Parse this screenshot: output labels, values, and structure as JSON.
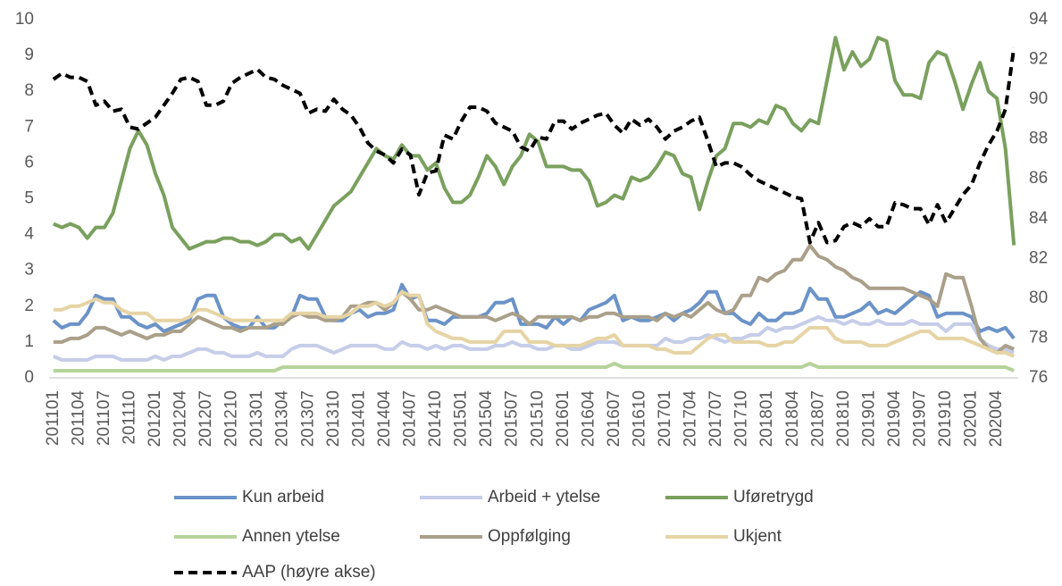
{
  "chart_data": {
    "type": "line",
    "categories": [
      "201101",
      null,
      null,
      "201104",
      null,
      null,
      "201107",
      null,
      null,
      "201110",
      null,
      null,
      "201201",
      null,
      null,
      "201204",
      null,
      null,
      "201207",
      null,
      null,
      "201210",
      null,
      null,
      "201301",
      null,
      null,
      "201304",
      null,
      null,
      "201307",
      null,
      null,
      "201310",
      null,
      null,
      "201401",
      null,
      null,
      "201404",
      null,
      null,
      "201407",
      null,
      null,
      "201410",
      null,
      null,
      "201501",
      null,
      null,
      "201504",
      null,
      null,
      "201507",
      null,
      null,
      "201510",
      null,
      null,
      "201601",
      null,
      null,
      "201604",
      null,
      null,
      "201607",
      null,
      null,
      "201610",
      null,
      null,
      "201701",
      null,
      null,
      "201704",
      null,
      null,
      "201707",
      null,
      null,
      "201710",
      null,
      null,
      "201801",
      null,
      null,
      "201804",
      null,
      null,
      "201807",
      null,
      null,
      "201810",
      null,
      null,
      "201901",
      null,
      null,
      "201904",
      null,
      null,
      "201907",
      null,
      null,
      "201910",
      null,
      null,
      "202001",
      null,
      null,
      "202004",
      null,
      null
    ],
    "series": [
      {
        "name": "Kun arbeid",
        "color": "#6b93c8",
        "values": [
          1.6,
          1.4,
          1.5,
          1.5,
          1.8,
          2.3,
          2.2,
          2.2,
          1.7,
          1.7,
          1.5,
          1.4,
          1.5,
          1.3,
          1.4,
          1.5,
          1.6,
          2.2,
          2.3,
          2.3,
          1.7,
          1.5,
          1.4,
          1.4,
          1.7,
          1.4,
          1.4,
          1.6,
          1.7,
          2.3,
          2.2,
          2.2,
          1.7,
          1.6,
          1.6,
          1.8,
          1.9,
          1.7,
          1.8,
          1.8,
          1.9,
          2.6,
          2.2,
          2.3,
          1.6,
          1.6,
          1.5,
          1.7,
          1.7,
          1.7,
          1.7,
          1.8,
          2.1,
          2.1,
          2.2,
          1.5,
          1.5,
          1.5,
          1.4,
          1.7,
          1.5,
          1.7,
          1.6,
          1.9,
          2.0,
          2.1,
          2.3,
          1.6,
          1.7,
          1.6,
          1.6,
          1.7,
          1.8,
          1.6,
          1.8,
          1.9,
          2.1,
          2.4,
          2.4,
          1.8,
          1.8,
          1.6,
          1.5,
          1.8,
          1.6,
          1.6,
          1.8,
          1.8,
          1.9,
          2.5,
          2.2,
          2.2,
          1.7,
          1.7,
          1.8,
          1.9,
          2.1,
          1.8,
          1.9,
          1.8,
          2.0,
          2.2,
          2.4,
          2.3,
          1.7,
          1.8,
          1.8,
          1.8,
          1.7,
          1.3,
          1.4,
          1.3,
          1.4,
          1.1
        ]
      },
      {
        "name": "Arbeid + ytelse",
        "color": "#c5cde8",
        "values": [
          0.6,
          0.5,
          0.5,
          0.5,
          0.5,
          0.6,
          0.6,
          0.6,
          0.5,
          0.5,
          0.5,
          0.5,
          0.6,
          0.5,
          0.6,
          0.6,
          0.7,
          0.8,
          0.8,
          0.7,
          0.7,
          0.6,
          0.6,
          0.6,
          0.7,
          0.6,
          0.6,
          0.6,
          0.8,
          0.9,
          0.9,
          0.9,
          0.8,
          0.7,
          0.8,
          0.9,
          0.9,
          0.9,
          0.9,
          0.8,
          0.8,
          1.0,
          0.9,
          0.9,
          0.8,
          0.9,
          0.8,
          0.9,
          0.9,
          0.8,
          0.8,
          0.8,
          0.9,
          0.9,
          1.0,
          0.9,
          0.9,
          0.8,
          0.8,
          0.9,
          0.9,
          0.8,
          0.8,
          0.9,
          1.0,
          1.0,
          1.0,
          0.9,
          0.9,
          0.9,
          0.9,
          0.9,
          1.1,
          1.0,
          1.0,
          1.1,
          1.1,
          1.2,
          1.1,
          1.0,
          1.1,
          1.1,
          1.2,
          1.2,
          1.4,
          1.3,
          1.4,
          1.4,
          1.5,
          1.6,
          1.7,
          1.6,
          1.6,
          1.5,
          1.6,
          1.5,
          1.5,
          1.6,
          1.5,
          1.5,
          1.5,
          1.6,
          1.5,
          1.5,
          1.5,
          1.3,
          1.5,
          1.5,
          1.5,
          1.1,
          0.9,
          0.8,
          0.8,
          0.7
        ]
      },
      {
        "name": "Uføretrygd",
        "color": "#7aa05e",
        "values": [
          4.3,
          4.2,
          4.3,
          4.2,
          3.9,
          4.2,
          4.2,
          4.6,
          5.5,
          6.4,
          6.9,
          6.5,
          5.7,
          5.1,
          4.2,
          3.9,
          3.6,
          3.7,
          3.8,
          3.8,
          3.9,
          3.9,
          3.8,
          3.8,
          3.7,
          3.8,
          4.0,
          4.0,
          3.8,
          3.9,
          3.6,
          4.0,
          4.4,
          4.8,
          5.0,
          5.2,
          5.6,
          6.0,
          6.4,
          6.2,
          6.1,
          6.5,
          6.2,
          6.2,
          5.8,
          6.0,
          5.3,
          4.9,
          4.9,
          5.1,
          5.6,
          6.2,
          5.9,
          5.4,
          5.9,
          6.2,
          6.8,
          6.6,
          5.9,
          5.9,
          5.9,
          5.8,
          5.8,
          5.5,
          4.8,
          4.9,
          5.1,
          5.0,
          5.6,
          5.5,
          5.6,
          5.9,
          6.3,
          6.2,
          5.7,
          5.6,
          4.7,
          5.5,
          6.2,
          6.4,
          7.1,
          7.1,
          7.0,
          7.2,
          7.1,
          7.6,
          7.5,
          7.1,
          6.9,
          7.2,
          7.1,
          8.3,
          9.5,
          8.6,
          9.1,
          8.7,
          8.9,
          9.5,
          9.4,
          8.3,
          7.9,
          7.9,
          7.8,
          8.8,
          9.1,
          9.0,
          8.3,
          7.5,
          8.2,
          8.8,
          8.0,
          7.8,
          6.4,
          3.7
        ]
      },
      {
        "name": "Annen ytelse",
        "color": "#b6d39a",
        "values": [
          0.2,
          0.2,
          0.2,
          0.2,
          0.2,
          0.2,
          0.2,
          0.2,
          0.2,
          0.2,
          0.2,
          0.2,
          0.2,
          0.2,
          0.2,
          0.2,
          0.2,
          0.2,
          0.2,
          0.2,
          0.2,
          0.2,
          0.2,
          0.2,
          0.2,
          0.2,
          0.2,
          0.3,
          0.3,
          0.3,
          0.3,
          0.3,
          0.3,
          0.3,
          0.3,
          0.3,
          0.3,
          0.3,
          0.3,
          0.3,
          0.3,
          0.3,
          0.3,
          0.3,
          0.3,
          0.3,
          0.3,
          0.3,
          0.3,
          0.3,
          0.3,
          0.3,
          0.3,
          0.3,
          0.3,
          0.3,
          0.3,
          0.3,
          0.3,
          0.3,
          0.3,
          0.3,
          0.3,
          0.3,
          0.3,
          0.3,
          0.4,
          0.3,
          0.3,
          0.3,
          0.3,
          0.3,
          0.3,
          0.3,
          0.3,
          0.3,
          0.3,
          0.3,
          0.3,
          0.3,
          0.3,
          0.3,
          0.3,
          0.3,
          0.3,
          0.3,
          0.3,
          0.3,
          0.3,
          0.4,
          0.3,
          0.3,
          0.3,
          0.3,
          0.3,
          0.3,
          0.3,
          0.3,
          0.3,
          0.3,
          0.3,
          0.3,
          0.3,
          0.3,
          0.3,
          0.3,
          0.3,
          0.3,
          0.3,
          0.3,
          0.3,
          0.3,
          0.3,
          0.2
        ]
      },
      {
        "name": "Oppfølging",
        "color": "#aaa08a",
        "values": [
          1.0,
          1.0,
          1.1,
          1.1,
          1.2,
          1.4,
          1.4,
          1.3,
          1.2,
          1.3,
          1.2,
          1.1,
          1.2,
          1.2,
          1.3,
          1.3,
          1.5,
          1.7,
          1.6,
          1.5,
          1.4,
          1.4,
          1.3,
          1.4,
          1.4,
          1.4,
          1.5,
          1.5,
          1.7,
          1.8,
          1.7,
          1.7,
          1.6,
          1.6,
          1.7,
          2.0,
          2.0,
          2.1,
          2.1,
          1.9,
          2.1,
          2.4,
          2.2,
          1.9,
          1.9,
          2.0,
          1.9,
          1.8,
          1.7,
          1.7,
          1.7,
          1.7,
          1.6,
          1.7,
          1.8,
          1.7,
          1.5,
          1.7,
          1.7,
          1.7,
          1.7,
          1.7,
          1.6,
          1.7,
          1.7,
          1.8,
          1.8,
          1.7,
          1.7,
          1.7,
          1.7,
          1.6,
          1.8,
          1.7,
          1.8,
          1.7,
          1.9,
          2.1,
          1.9,
          1.8,
          1.9,
          2.3,
          2.3,
          2.8,
          2.7,
          2.9,
          3.0,
          3.3,
          3.3,
          3.7,
          3.4,
          3.3,
          3.1,
          3.0,
          2.8,
          2.7,
          2.5,
          2.5,
          2.5,
          2.5,
          2.5,
          2.4,
          2.3,
          2.2,
          2.0,
          2.9,
          2.8,
          2.8,
          2.0,
          1.1,
          0.8,
          0.7,
          0.9,
          0.8
        ]
      },
      {
        "name": "Ukjent",
        "color": "#e6d4a5",
        "values": [
          1.9,
          1.9,
          2.0,
          2.0,
          2.1,
          2.2,
          2.1,
          2.1,
          1.9,
          1.8,
          1.8,
          1.8,
          1.6,
          1.6,
          1.6,
          1.6,
          1.7,
          1.9,
          1.9,
          1.8,
          1.7,
          1.6,
          1.6,
          1.6,
          1.6,
          1.6,
          1.6,
          1.6,
          1.8,
          1.8,
          1.8,
          1.8,
          1.7,
          1.7,
          1.7,
          1.8,
          2.0,
          2.0,
          2.1,
          2.0,
          2.1,
          2.4,
          2.3,
          2.3,
          1.5,
          1.3,
          1.2,
          1.1,
          1.1,
          1.0,
          1.0,
          1.0,
          1.0,
          1.3,
          1.3,
          1.3,
          1.0,
          1.0,
          1.0,
          0.9,
          0.9,
          0.9,
          0.9,
          1.0,
          1.1,
          1.1,
          1.2,
          0.9,
          0.9,
          0.9,
          0.9,
          0.8,
          0.8,
          0.7,
          0.7,
          0.7,
          0.9,
          1.1,
          1.2,
          1.2,
          1.0,
          1.0,
          1.0,
          1.0,
          0.9,
          0.9,
          1.0,
          1.0,
          1.2,
          1.4,
          1.4,
          1.4,
          1.1,
          1.0,
          1.0,
          1.0,
          0.9,
          0.9,
          0.9,
          1.0,
          1.1,
          1.2,
          1.3,
          1.3,
          1.1,
          1.1,
          1.1,
          1.1,
          1.0,
          0.9,
          0.8,
          0.7,
          0.7,
          0.6
        ]
      },
      {
        "name": "AAP (høyre akse)",
        "color": "#000000",
        "dashed": true,
        "axis": "y2",
        "values": [
          91.0,
          91.3,
          91.1,
          91.1,
          90.9,
          89.7,
          89.9,
          89.4,
          89.5,
          88.6,
          88.5,
          88.8,
          89.1,
          89.7,
          90.3,
          91.0,
          91.1,
          90.9,
          89.7,
          89.7,
          89.9,
          90.8,
          91.1,
          91.3,
          91.5,
          91.1,
          91.0,
          90.7,
          90.5,
          90.3,
          89.3,
          89.5,
          89.4,
          90.0,
          89.5,
          89.2,
          88.6,
          87.8,
          87.4,
          87.2,
          86.8,
          87.5,
          87.2,
          85.2,
          86.3,
          86.4,
          88.2,
          88.0,
          88.9,
          89.6,
          89.6,
          89.4,
          88.8,
          88.6,
          88.4,
          87.6,
          87.4,
          88.1,
          88.0,
          88.9,
          88.9,
          88.5,
          88.8,
          89.0,
          89.2,
          89.3,
          88.7,
          88.3,
          89.0,
          88.7,
          89.0,
          88.6,
          88.0,
          88.4,
          88.6,
          88.9,
          89.1,
          87.9,
          86.6,
          86.8,
          86.8,
          86.6,
          86.2,
          85.9,
          85.7,
          85.5,
          85.3,
          85.1,
          85.0,
          82.8,
          83.8,
          82.8,
          82.9,
          83.6,
          83.8,
          83.6,
          84.0,
          83.6,
          83.6,
          84.8,
          84.7,
          84.5,
          84.5,
          83.7,
          84.7,
          83.8,
          84.5,
          85.2,
          85.7,
          86.8,
          87.7,
          88.4,
          89.5,
          92.6
        ]
      }
    ],
    "ylim": [
      0,
      10
    ],
    "yticks": [
      0,
      1,
      2,
      3,
      4,
      5,
      6,
      7,
      8,
      9,
      10
    ],
    "y2lim": [
      76,
      94
    ],
    "y2ticks": [
      76,
      78,
      80,
      82,
      84,
      86,
      88,
      90,
      92,
      94
    ],
    "grid": false,
    "legend": "bottom"
  }
}
